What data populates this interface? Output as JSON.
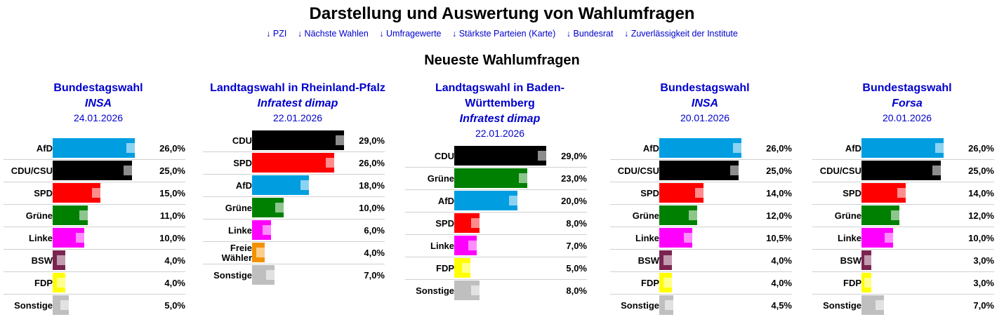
{
  "header": {
    "title": "Darstellung und Auswertung von Wahlumfragen",
    "subtitle": "Neueste Wahlumfragen"
  },
  "nav": [
    {
      "label": "↓ PZI"
    },
    {
      "label": "↓ Nächste Wahlen"
    },
    {
      "label": "↓ Umfragewerte"
    },
    {
      "label": "↓ Stärkste Parteien (Karte)"
    },
    {
      "label": "↓ Bundesrat"
    },
    {
      "label": "↓ Zuverlässigkeit der Institute"
    }
  ],
  "colors": {
    "AfD": "#009ee0",
    "CDU/CSU": "#000000",
    "CDU": "#000000",
    "SPD": "#ff0000",
    "Grüne": "#008000",
    "Linke": "#ff00ff",
    "BSW": "#7b2450",
    "FDP": "#ffff00",
    "Freie Wähler": "#f39200",
    "Sonstige": "#bfbfbf",
    "link": "#0000cc"
  },
  "chart_data": [
    {
      "type": "bar",
      "orientation": "horizontal",
      "title": "Bundestagswahl",
      "institute": "INSA",
      "date": "24.01.2026",
      "categories": [
        "AfD",
        "CDU/CSU",
        "SPD",
        "Grüne",
        "Linke",
        "BSW",
        "FDP",
        "Sonstige"
      ],
      "values": [
        26.0,
        25.0,
        15.0,
        11.0,
        10.0,
        4.0,
        4.0,
        5.0
      ],
      "labels": [
        "26,0%",
        "25,0%",
        "15,0%",
        "11,0%",
        "10,0%",
        "4,0%",
        "4,0%",
        "5,0%"
      ],
      "xlim": [
        0,
        30
      ]
    },
    {
      "type": "bar",
      "orientation": "horizontal",
      "title": "Landtagswahl in Rheinland-Pfalz",
      "institute": "Infratest dimap",
      "date": "22.01.2026",
      "categories": [
        "CDU",
        "SPD",
        "AfD",
        "Grüne",
        "Linke",
        "Freie Wähler",
        "Sonstige"
      ],
      "values": [
        29.0,
        26.0,
        18.0,
        10.0,
        6.0,
        4.0,
        7.0
      ],
      "labels": [
        "29,0%",
        "26,0%",
        "18,0%",
        "10,0%",
        "6,0%",
        "4,0%",
        "7,0%"
      ],
      "xlim": [
        0,
        30
      ]
    },
    {
      "type": "bar",
      "orientation": "horizontal",
      "title": "Landtagswahl in Baden-Württemberg",
      "institute": "Infratest dimap",
      "date": "22.01.2026",
      "categories": [
        "CDU",
        "Grüne",
        "AfD",
        "SPD",
        "Linke",
        "FDP",
        "Sonstige"
      ],
      "values": [
        29.0,
        23.0,
        20.0,
        8.0,
        7.0,
        5.0,
        8.0
      ],
      "labels": [
        "29,0%",
        "23,0%",
        "20,0%",
        "8,0%",
        "7,0%",
        "5,0%",
        "8,0%"
      ],
      "xlim": [
        0,
        30
      ]
    },
    {
      "type": "bar",
      "orientation": "horizontal",
      "title": "Bundestagswahl",
      "institute": "INSA",
      "date": "20.01.2026",
      "categories": [
        "AfD",
        "CDU/CSU",
        "SPD",
        "Grüne",
        "Linke",
        "BSW",
        "FDP",
        "Sonstige"
      ],
      "values": [
        26.0,
        25.0,
        14.0,
        12.0,
        10.5,
        4.0,
        4.0,
        4.5
      ],
      "labels": [
        "26,0%",
        "25,0%",
        "14,0%",
        "12,0%",
        "10,5%",
        "4,0%",
        "4,0%",
        "4,5%"
      ],
      "xlim": [
        0,
        30
      ]
    },
    {
      "type": "bar",
      "orientation": "horizontal",
      "title": "Bundestagswahl",
      "institute": "Forsa",
      "date": "20.01.2026",
      "categories": [
        "AfD",
        "CDU/CSU",
        "SPD",
        "Grüne",
        "Linke",
        "BSW",
        "FDP",
        "Sonstige"
      ],
      "values": [
        26.0,
        25.0,
        14.0,
        12.0,
        10.0,
        3.0,
        3.0,
        7.0
      ],
      "labels": [
        "26,0%",
        "25,0%",
        "14,0%",
        "12,0%",
        "10,0%",
        "3,0%",
        "3,0%",
        "7,0%"
      ],
      "xlim": [
        0,
        30
      ]
    }
  ]
}
